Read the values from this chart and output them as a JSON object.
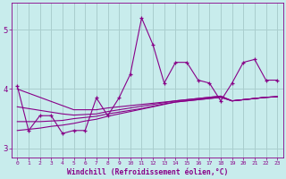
{
  "x": [
    0,
    1,
    2,
    3,
    4,
    5,
    6,
    7,
    8,
    9,
    10,
    11,
    12,
    13,
    14,
    15,
    16,
    17,
    18,
    19,
    20,
    21,
    22,
    23
  ],
  "line1": [
    4.05,
    3.3,
    3.55,
    3.55,
    3.25,
    3.3,
    3.3,
    3.85,
    3.55,
    3.85,
    4.25,
    5.2,
    4.75,
    4.1,
    4.45,
    4.45,
    4.15,
    4.1,
    3.8,
    4.1,
    4.45,
    4.5,
    4.15,
    4.15
  ],
  "reg1": [
    4.0,
    3.93,
    3.86,
    3.79,
    3.72,
    3.65,
    3.65,
    3.65,
    3.68,
    3.7,
    3.72,
    3.74,
    3.76,
    3.78,
    3.8,
    3.82,
    3.84,
    3.86,
    3.88,
    3.8,
    3.82,
    3.84,
    3.86,
    3.87
  ],
  "reg2": [
    3.7,
    3.67,
    3.64,
    3.61,
    3.58,
    3.56,
    3.57,
    3.58,
    3.62,
    3.65,
    3.68,
    3.71,
    3.74,
    3.77,
    3.8,
    3.82,
    3.84,
    3.86,
    3.88,
    3.8,
    3.82,
    3.84,
    3.86,
    3.87
  ],
  "reg3": [
    3.45,
    3.45,
    3.45,
    3.46,
    3.47,
    3.5,
    3.52,
    3.54,
    3.58,
    3.61,
    3.64,
    3.67,
    3.71,
    3.75,
    3.78,
    3.8,
    3.82,
    3.84,
    3.86,
    3.8,
    3.82,
    3.84,
    3.86,
    3.87
  ],
  "reg4": [
    3.3,
    3.32,
    3.34,
    3.37,
    3.39,
    3.42,
    3.46,
    3.49,
    3.54,
    3.58,
    3.62,
    3.66,
    3.7,
    3.74,
    3.78,
    3.8,
    3.82,
    3.84,
    3.86,
    3.8,
    3.82,
    3.84,
    3.86,
    3.87
  ],
  "line_color": "#880088",
  "bg_color": "#c8ecec",
  "grid_color": "#aacece",
  "xlabel": "Windchill (Refroidissement éolien,°C)",
  "ylim": [
    2.85,
    5.45
  ],
  "xlim": [
    -0.5,
    23.5
  ],
  "yticks": [
    3,
    4,
    5
  ],
  "xticks": [
    0,
    1,
    2,
    3,
    4,
    5,
    6,
    7,
    8,
    9,
    10,
    11,
    12,
    13,
    14,
    15,
    16,
    17,
    18,
    19,
    20,
    21,
    22,
    23
  ]
}
